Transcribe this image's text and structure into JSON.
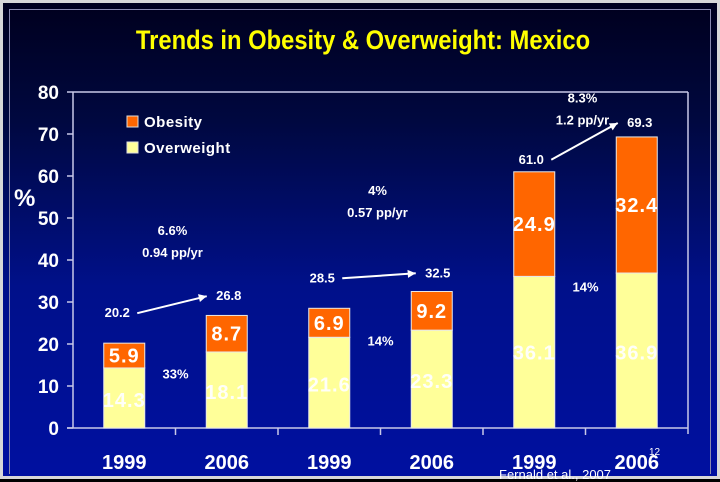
{
  "slide": {
    "title": "Trends in Obesity & Overweight: Mexico",
    "source": "Fernald et al., 2007",
    "slide_number": "12"
  },
  "colors": {
    "obesity": "#ff6600",
    "overweight": "#ffff99",
    "title": "#ffff00",
    "text": "#ffffff",
    "axis": "#c8c8e8"
  },
  "chart_data": {
    "type": "bar",
    "stacked": true,
    "title": "Trends in Obesity & Overweight: Mexico",
    "xlabel": "",
    "ylabel": "%",
    "ylim": [
      0,
      80
    ],
    "yticks": [
      0,
      10,
      20,
      30,
      40,
      50,
      60,
      70,
      80
    ],
    "grid": false,
    "legend_position": "top-left",
    "categories": [
      "1999",
      "2006",
      "1999",
      "2006",
      "1999",
      "2006"
    ],
    "series": [
      {
        "name": "Overweight",
        "values": [
          14.3,
          18.1,
          21.6,
          23.3,
          36.1,
          36.9
        ]
      },
      {
        "name": "Obesity",
        "values": [
          5.9,
          8.7,
          6.9,
          9.2,
          24.9,
          32.4
        ]
      }
    ],
    "totals": [
      20.2,
      26.8,
      28.5,
      32.5,
      61.0,
      69.3
    ],
    "groups": [
      {
        "bars": [
          0,
          1
        ],
        "change_pct": "6.6%",
        "rate": "0.94 pp/yr",
        "middle_label": "33%"
      },
      {
        "bars": [
          2,
          3
        ],
        "change_pct": "4%",
        "rate": "0.57 pp/yr",
        "middle_label": "14%"
      },
      {
        "bars": [
          4,
          5
        ],
        "change_pct": "8.3%",
        "rate": "1.2 pp/yr",
        "middle_label": "14%"
      }
    ],
    "value_labels_obesity": [
      "5.9",
      "8.7",
      "6.9",
      "9.2",
      "24.9",
      "32.4"
    ],
    "value_labels_overweight": [
      "14.3",
      "18.1",
      "21.6",
      "23.3",
      "36.1",
      "36.9"
    ],
    "total_labels": [
      "20.2",
      "26.8",
      "28.5",
      "32.5",
      "61.0",
      "69.3"
    ],
    "tick_labels": [
      "0",
      "10",
      "20",
      "30",
      "40",
      "50",
      "60",
      "70",
      "80"
    ]
  }
}
